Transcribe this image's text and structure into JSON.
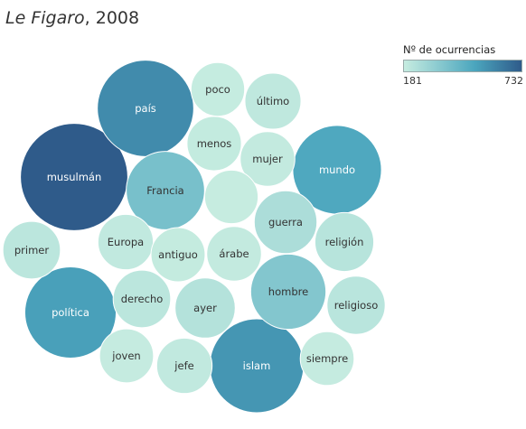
{
  "title": {
    "paper": "Le Figaro",
    "suffix": ", 2008"
  },
  "legend": {
    "title": "Nº de ocurrencias",
    "min_label": "181",
    "max_label": "732"
  },
  "colors": {
    "low": "#c6ece0",
    "mid": "#4ba6be",
    "high": "#2f5b8a"
  },
  "chart_data": {
    "type": "packed_bubble",
    "title": "Le Figaro, 2008",
    "measure": "Nº de ocurrencias",
    "range": [
      181,
      732
    ],
    "points": [
      {
        "label": "musulmán",
        "value": 732
      },
      {
        "label": "país",
        "value": 590
      },
      {
        "label": "islam",
        "value": 560
      },
      {
        "label": "política",
        "value": 530
      },
      {
        "label": "mundo",
        "value": 500
      },
      {
        "label": "Francia",
        "value": 390
      },
      {
        "label": "hombre",
        "value": 360
      },
      {
        "label": "guerra",
        "value": 250
      },
      {
        "label": "ayer",
        "value": 230
      },
      {
        "label": "religión",
        "value": 220
      },
      {
        "label": "religioso",
        "value": 215
      },
      {
        "label": "primer",
        "value": 210
      },
      {
        "label": "derecho",
        "value": 210
      },
      {
        "label": "último",
        "value": 200
      },
      {
        "label": "jefe",
        "value": 195
      },
      {
        "label": "Europa",
        "value": 195
      },
      {
        "label": "mujer",
        "value": 190
      },
      {
        "label": "árabe",
        "value": 190
      },
      {
        "label": "menos",
        "value": 188
      },
      {
        "label": "antiguo",
        "value": 186
      },
      {
        "label": "joven",
        "value": 185
      },
      {
        "label": "siempre",
        "value": 184
      },
      {
        "label": "poco",
        "value": 183
      },
      {
        "label": "",
        "value": 182
      }
    ]
  }
}
